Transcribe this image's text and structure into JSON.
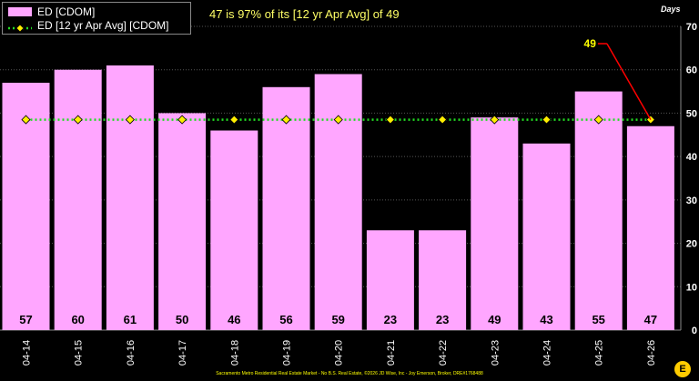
{
  "headline": "47 is 97% of its [12 yr Apr Avg] of 49",
  "footer": "Sacramento Metro Residential Real Estate Market - No B.S. Real Estate, ©2026 JD Wise, Inc - Joy Emerson, Broker, DRE#1768488",
  "colors": {
    "bar": "#ffa6ff",
    "avg_line": "#22dd22",
    "marker": "#ffee00",
    "callout": "#ff0000",
    "callout_text": "#ffff00",
    "grid": "#555555"
  },
  "chart_data": {
    "type": "bar",
    "categories": [
      "04-14",
      "04-15",
      "04-16",
      "04-17",
      "04-18",
      "04-19",
      "04-20",
      "04-21",
      "04-22",
      "04-23",
      "04-24",
      "04-25",
      "04-26"
    ],
    "series": [
      {
        "name": "ED [CDOM]",
        "type": "bar",
        "values": [
          57,
          60,
          61,
          50,
          46,
          56,
          59,
          23,
          23,
          49,
          43,
          55,
          47
        ]
      },
      {
        "name": "ED [12 yr Apr Avg] [CDOM]",
        "type": "line",
        "values": [
          48.5,
          48.5,
          48.5,
          48.5,
          48.5,
          48.5,
          48.5,
          48.5,
          48.5,
          48.5,
          48.5,
          48.5,
          48.5
        ]
      }
    ],
    "ylabel": "Days",
    "ylim": [
      0,
      70
    ],
    "yticks": [
      0,
      10,
      20,
      30,
      40,
      50,
      60,
      70
    ],
    "y_axis_side": "right",
    "grid": true,
    "legend": "top-left",
    "callout": {
      "label": "49",
      "category": "04-26"
    }
  }
}
